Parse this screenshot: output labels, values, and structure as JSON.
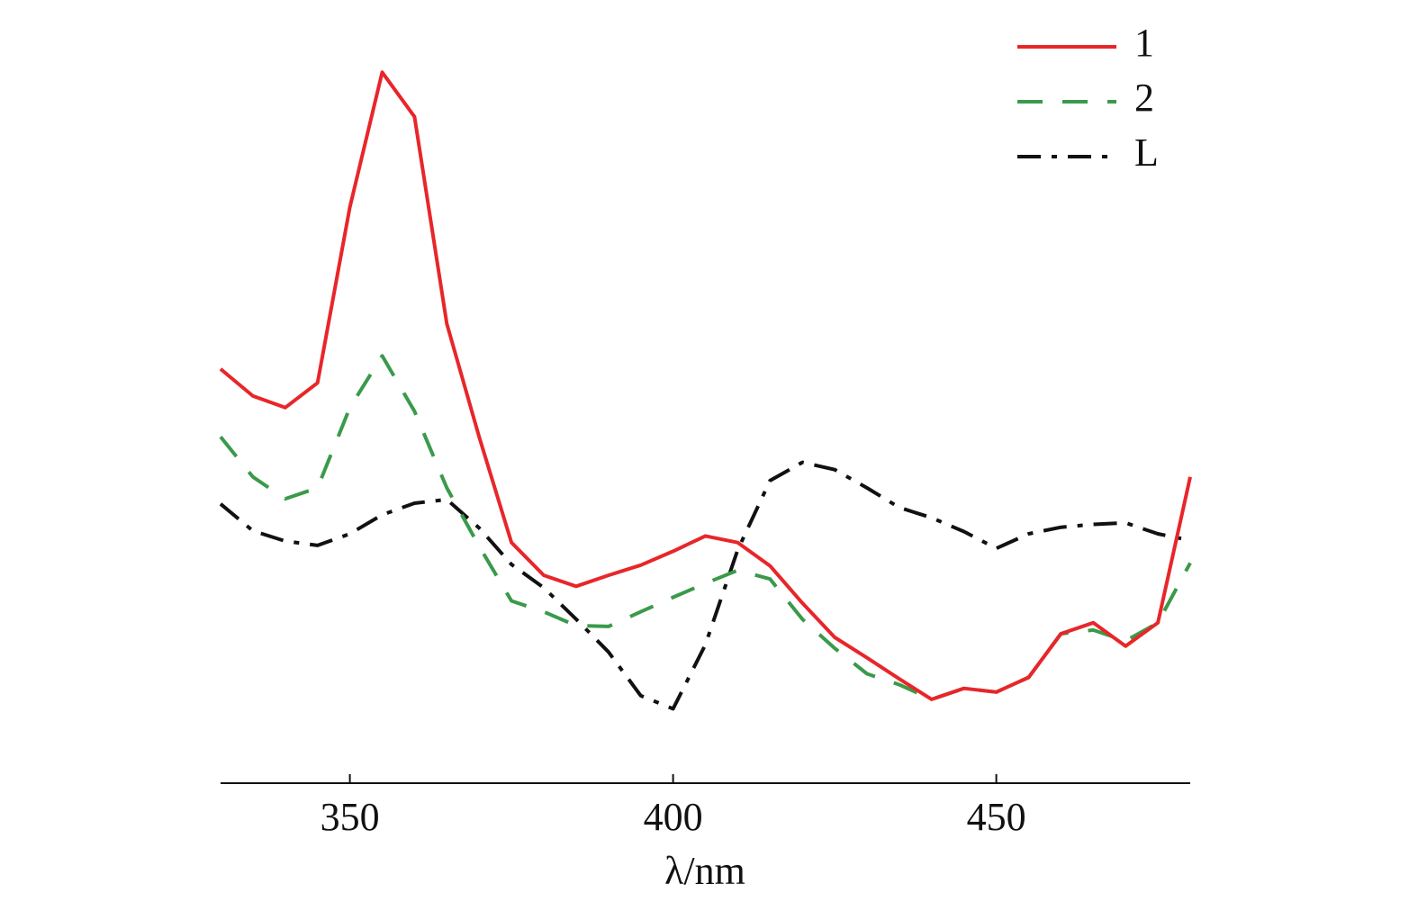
{
  "chart_data": {
    "type": "line",
    "x": [
      330,
      335,
      340,
      345,
      350,
      355,
      360,
      365,
      370,
      375,
      380,
      385,
      390,
      395,
      400,
      405,
      410,
      415,
      420,
      425,
      430,
      435,
      440,
      445,
      450,
      455,
      460,
      465,
      470,
      475,
      480
    ],
    "series": [
      {
        "name": "1",
        "color": "#e8262a",
        "dash": "solid",
        "values": [
          56.8,
          53.1,
          51.5,
          54.9,
          79,
          97.5,
          91.4,
          63,
          47.5,
          33,
          28.5,
          27,
          28.5,
          29.9,
          31.8,
          33.9,
          33,
          29.8,
          24.7,
          20,
          17.2,
          14.3,
          11.5,
          13,
          12.5,
          14.5,
          20.5,
          22,
          18.8,
          22,
          42
        ]
      },
      {
        "name": "2",
        "color": "#3a9a4a",
        "dash": "dashed",
        "values": [
          47.5,
          42,
          39,
          40.5,
          51.5,
          58.6,
          51,
          40.5,
          32.5,
          25,
          23.5,
          21.6,
          21.5,
          23.5,
          25.5,
          27.4,
          29.2,
          28,
          22.5,
          18.5,
          15,
          13.5,
          11.5,
          13,
          12.5,
          14.5,
          20.5,
          21,
          19.5,
          22,
          30.2
        ]
      },
      {
        "name": "L",
        "color": "#111111",
        "dash": "dashdot",
        "values": [
          38.3,
          34.6,
          33.2,
          32.6,
          34.2,
          36.8,
          38.4,
          38.9,
          35,
          30,
          26.8,
          22.5,
          18,
          12,
          10.2,
          19,
          32,
          41.5,
          44,
          43,
          40.5,
          37.8,
          36.4,
          34.5,
          32.2,
          34.2,
          35.1,
          35.5,
          35.7,
          34.2,
          33.3
        ]
      }
    ],
    "x_label": "λ/nm",
    "xlim": [
      330,
      480
    ],
    "xticks": [
      350,
      400,
      450
    ],
    "ylim": [
      0,
      100
    ],
    "legend": "upper right"
  }
}
